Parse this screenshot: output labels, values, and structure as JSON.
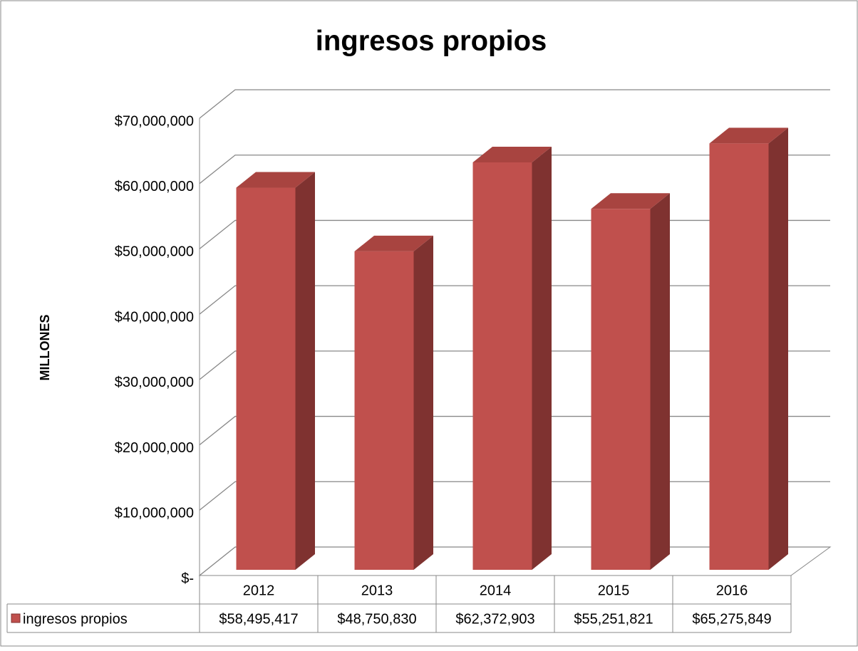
{
  "chart_data": {
    "type": "bar3d",
    "title": "ingresos propios",
    "y_label": "MILLONES",
    "categories": [
      "2012",
      "2013",
      "2014",
      "2015",
      "2016"
    ],
    "series": [
      {
        "name": "ingresos propios",
        "color": "#c0504d",
        "values": [
          58495417,
          48750830,
          62372903,
          55251821,
          65275849
        ],
        "value_labels": [
          "$58,495,417",
          "$48,750,830",
          "$62,372,903",
          "$55,251,821",
          "$65,275,849"
        ]
      }
    ],
    "ylim": [
      0,
      70000000
    ],
    "yticks": [
      {
        "value": 0,
        "label": "$-"
      },
      {
        "value": 10000000,
        "label": "$10,000,000"
      },
      {
        "value": 20000000,
        "label": "$20,000,000"
      },
      {
        "value": 30000000,
        "label": "$30,000,000"
      },
      {
        "value": 40000000,
        "label": "$40,000,000"
      },
      {
        "value": 50000000,
        "label": "$50,000,000"
      },
      {
        "value": 60000000,
        "label": "$60,000,000"
      },
      {
        "value": 70000000,
        "label": "$70,000,000"
      }
    ],
    "grid": true,
    "data_table": true
  }
}
